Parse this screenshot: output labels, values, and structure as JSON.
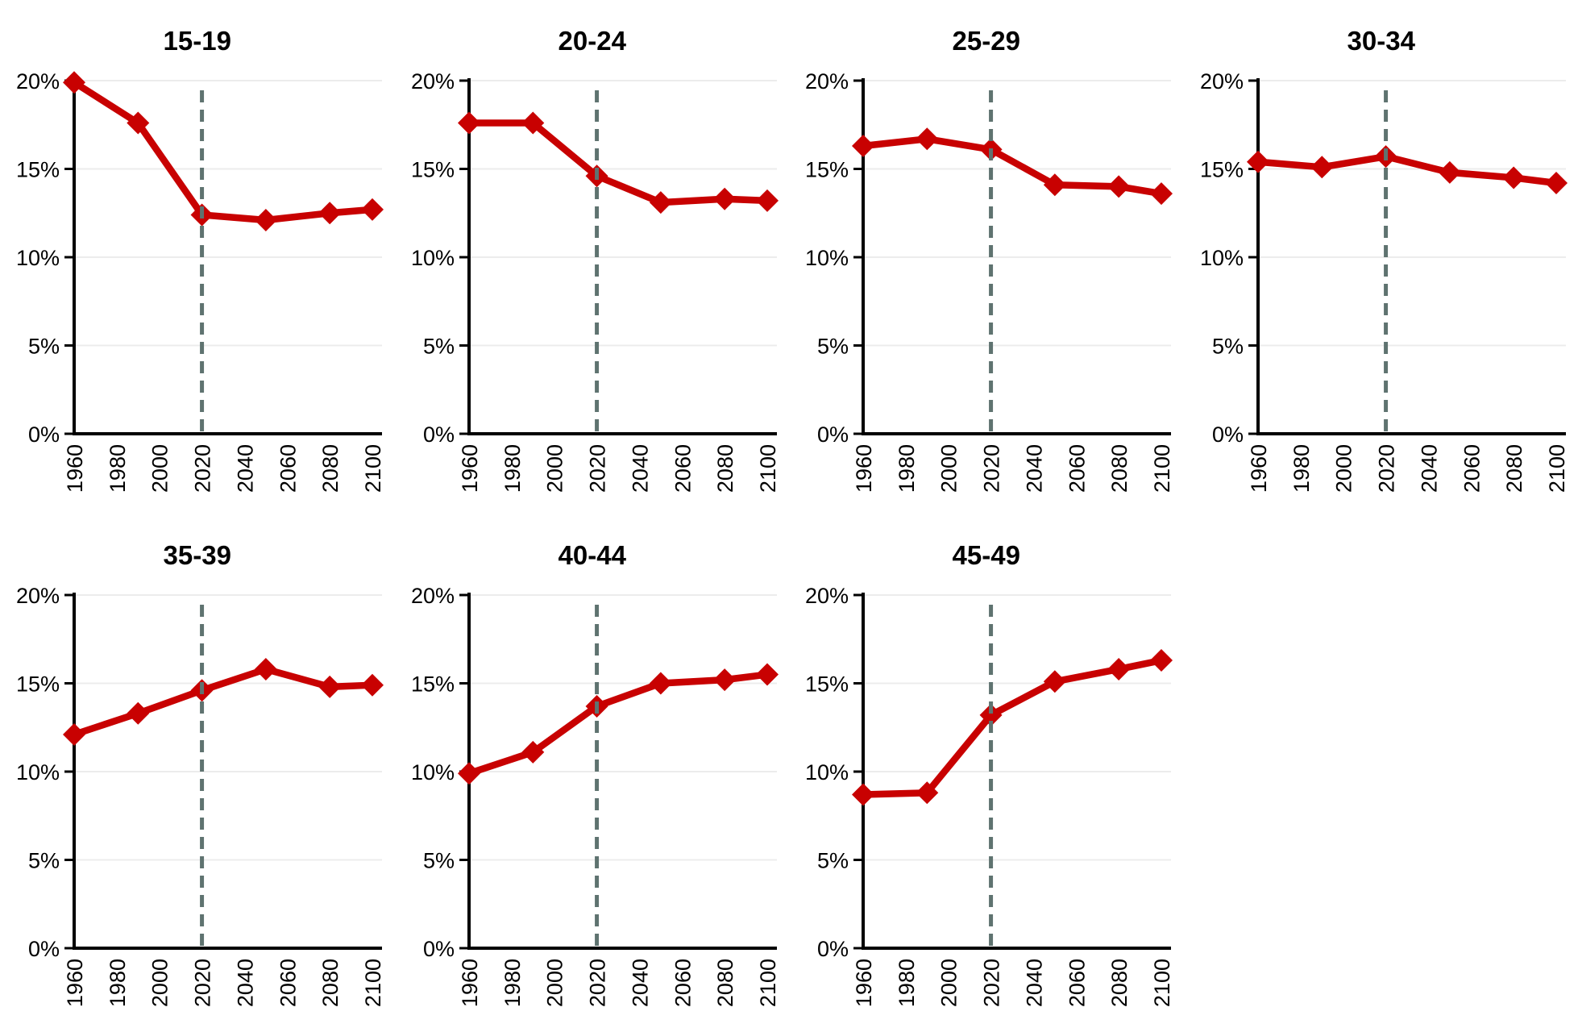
{
  "page": {
    "background": "#FFFFFF",
    "description": "Seven small-multiple line charts of age-group shares (percent), historical and projected, with a dashed divider at 2020"
  },
  "style": {
    "series_color": "#C80101",
    "divider_color": "#5F7370",
    "gridline_color": "#ECECEC",
    "axis_color": "#000000",
    "text_color": "#000000"
  },
  "axes": {
    "x_ticks": [
      1960,
      1980,
      2000,
      2020,
      2040,
      2060,
      2080,
      2100
    ],
    "y_ticks": [
      0,
      5,
      10,
      15,
      20
    ],
    "y_tick_suffix": "%",
    "xlim": [
      1960,
      2100
    ],
    "ylim": [
      0,
      20
    ],
    "grid": "horizontal-only",
    "divider_year": 2020,
    "x_label_rotation": -90
  },
  "chart_data": [
    {
      "type": "line",
      "title": "15-19",
      "x": [
        1960,
        1990,
        2020,
        2050,
        2080,
        2100
      ],
      "values": [
        19.9,
        17.6,
        12.4,
        12.1,
        12.5,
        12.7
      ],
      "marker": "diamond",
      "vline_x": 2020,
      "grid_row": 0,
      "grid_col": 0
    },
    {
      "type": "line",
      "title": "20-24",
      "x": [
        1960,
        1990,
        2020,
        2050,
        2080,
        2100
      ],
      "values": [
        17.6,
        17.6,
        14.6,
        13.1,
        13.3,
        13.2
      ],
      "marker": "diamond",
      "vline_x": 2020,
      "grid_row": 0,
      "grid_col": 1
    },
    {
      "type": "line",
      "title": "25-29",
      "x": [
        1960,
        1990,
        2020,
        2050,
        2080,
        2100
      ],
      "values": [
        16.3,
        16.7,
        16.1,
        14.1,
        14.0,
        13.6
      ],
      "marker": "diamond",
      "vline_x": 2020,
      "grid_row": 0,
      "grid_col": 2
    },
    {
      "type": "line",
      "title": "30-34",
      "x": [
        1960,
        1990,
        2020,
        2050,
        2080,
        2100
      ],
      "values": [
        15.4,
        15.1,
        15.7,
        14.8,
        14.5,
        14.2
      ],
      "marker": "diamond",
      "vline_x": 2020,
      "grid_row": 0,
      "grid_col": 3
    },
    {
      "type": "line",
      "title": "35-39",
      "x": [
        1960,
        1990,
        2020,
        2050,
        2080,
        2100
      ],
      "values": [
        12.1,
        13.3,
        14.6,
        15.8,
        14.8,
        14.9
      ],
      "marker": "diamond",
      "vline_x": 2020,
      "grid_row": 1,
      "grid_col": 0
    },
    {
      "type": "line",
      "title": "40-44",
      "x": [
        1960,
        1990,
        2020,
        2050,
        2080,
        2100
      ],
      "values": [
        9.9,
        11.1,
        13.7,
        15.0,
        15.2,
        15.5
      ],
      "marker": "diamond",
      "vline_x": 2020,
      "grid_row": 1,
      "grid_col": 1
    },
    {
      "type": "line",
      "title": "45-49",
      "x": [
        1960,
        1990,
        2020,
        2050,
        2080,
        2100
      ],
      "values": [
        8.7,
        8.8,
        13.2,
        15.1,
        15.8,
        16.3
      ],
      "marker": "diamond",
      "vline_x": 2020,
      "grid_row": 1,
      "grid_col": 2
    }
  ]
}
